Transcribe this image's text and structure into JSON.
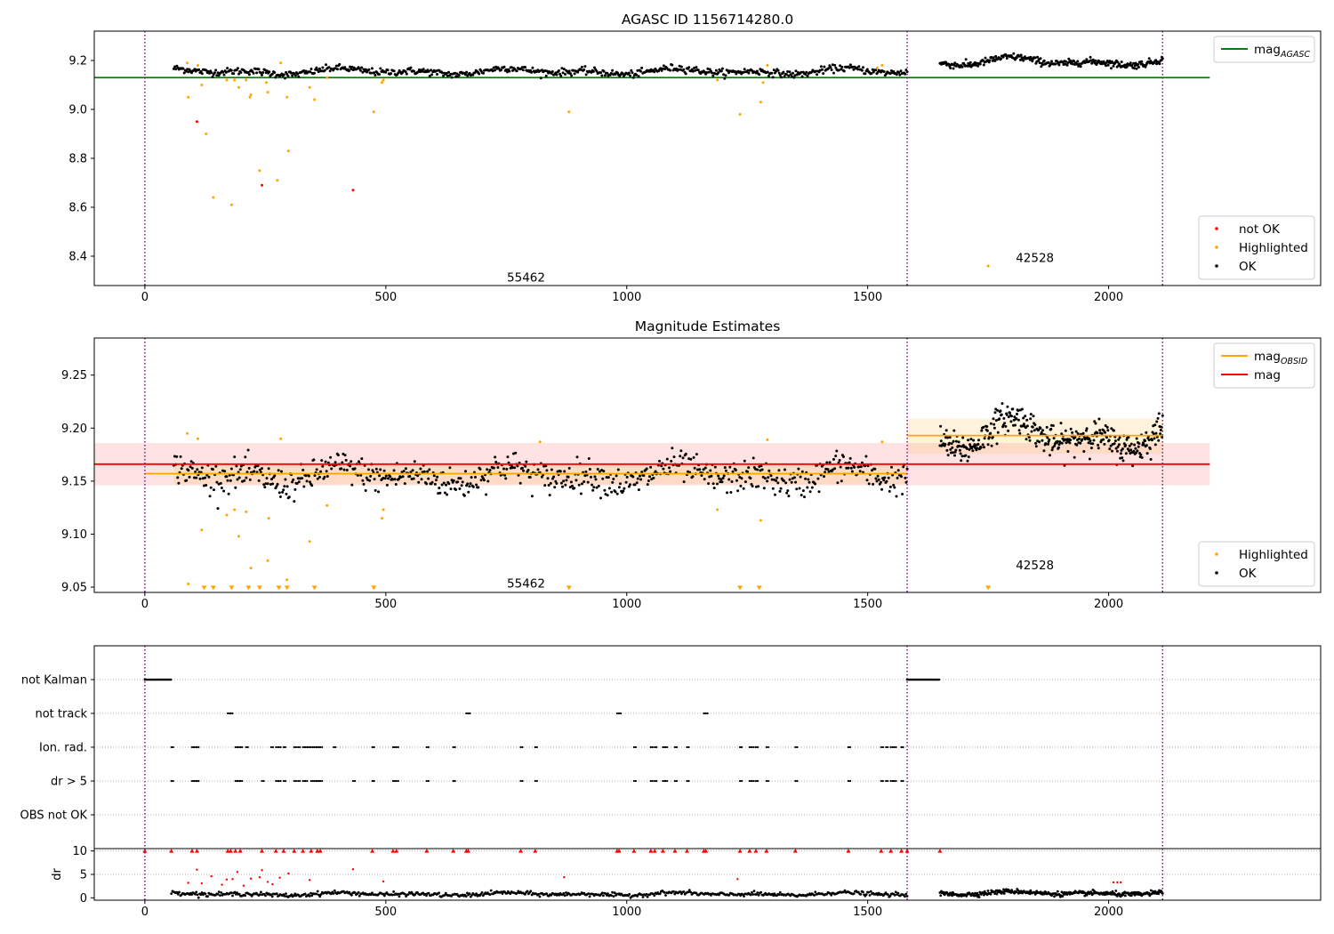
{
  "chart_data": [
    {
      "type": "scatter",
      "title": "AGASC ID 1156714280.0",
      "xlim": [
        -105,
        2440
      ],
      "ylim": [
        8.28,
        9.32
      ],
      "xticks": [
        0,
        500,
        1000,
        1500,
        2000
      ],
      "yticks": [
        8.4,
        8.6,
        8.8,
        9.0,
        9.2
      ],
      "ytick_labels": [
        "8.4",
        "8.6",
        "8.8",
        "9.0",
        "9.2"
      ],
      "vlines": [
        0,
        1582,
        2112
      ],
      "hlines": [
        {
          "name": "mag_AGASC",
          "y": 9.13,
          "x_range": [
            -105,
            2210
          ],
          "color": "#008000"
        }
      ],
      "annotations": [
        {
          "text": "55462",
          "x": 791,
          "y": 8.315
        },
        {
          "text": "42528",
          "x": 1847,
          "y": 8.395
        }
      ],
      "legends": [
        {
          "position": "top-right",
          "entries": [
            {
              "label": "mag",
              "subscript": "AGASC",
              "kind": "line",
              "color": "#008000"
            }
          ]
        },
        {
          "position": "bottom-right",
          "entries": [
            {
              "label": "not OK",
              "kind": "dot",
              "color": "#ff0000"
            },
            {
              "label": "Highlighted",
              "kind": "dot",
              "color": "#ffa500"
            },
            {
              "label": "OK",
              "kind": "dot",
              "color": "#000000"
            }
          ]
        }
      ],
      "series": [
        {
          "name": "OK",
          "color": "#000000",
          "segments": [
            {
              "x0": 60,
              "x1": 1582,
              "base": 9.155,
              "amp": 0.015,
              "noise": 0.012,
              "n": 700
            },
            {
              "x0": 1650,
              "x1": 2112,
              "base": 9.195,
              "amp": 0.02,
              "noise": 0.012,
              "n": 300
            }
          ]
        },
        {
          "name": "Highlighted",
          "color": "#ffa500",
          "points": [
            [
              88,
              9.19
            ],
            [
              90,
              9.05
            ],
            [
              110,
              9.18
            ],
            [
              118,
              9.1
            ],
            [
              127,
              8.9
            ],
            [
              142,
              8.64
            ],
            [
              170,
              9.12
            ],
            [
              180,
              8.61
            ],
            [
              186,
              9.12
            ],
            [
              195,
              9.09
            ],
            [
              210,
              9.12
            ],
            [
              218,
              9.05
            ],
            [
              220,
              9.06
            ],
            [
              238,
              8.75
            ],
            [
              252,
              9.11
            ],
            [
              255,
              9.07
            ],
            [
              275,
              8.71
            ],
            [
              282,
              9.19
            ],
            [
              295,
              9.05
            ],
            [
              298,
              8.83
            ],
            [
              342,
              9.09
            ],
            [
              352,
              9.04
            ],
            [
              378,
              9.13
            ],
            [
              475,
              8.99
            ],
            [
              492,
              9.11
            ],
            [
              495,
              9.12
            ],
            [
              880,
              8.99
            ],
            [
              1188,
              9.12
            ],
            [
              1235,
              8.98
            ],
            [
              1278,
              9.03
            ],
            [
              1283,
              9.11
            ],
            [
              1292,
              9.18
            ],
            [
              1520,
              9.17
            ],
            [
              1530,
              9.18
            ],
            [
              1750,
              8.36
            ]
          ]
        },
        {
          "name": "not OK",
          "color": "#ff0000",
          "points": [
            [
              108,
              8.95
            ],
            [
              243,
              8.69
            ],
            [
              432,
              8.67
            ]
          ]
        }
      ]
    },
    {
      "type": "scatter",
      "title": "Magnitude Estimates",
      "xlim": [
        -105,
        2440
      ],
      "ylim": [
        9.045,
        9.285
      ],
      "xticks": [
        0,
        500,
        1000,
        1500,
        2000
      ],
      "yticks": [
        9.05,
        9.1,
        9.15,
        9.2,
        9.25
      ],
      "ytick_labels": [
        "9.05",
        "9.10",
        "9.15",
        "9.20",
        "9.25"
      ],
      "vlines": [
        0,
        1582,
        2112
      ],
      "bands": [
        {
          "x0": -105,
          "x1": 2210,
          "y0": 9.146,
          "y1": 9.186,
          "color": "#ff0000",
          "opacity": 0.11
        },
        {
          "x0": 60,
          "x1": 1582,
          "y0": 9.147,
          "y1": 9.166,
          "color": "#ffa500",
          "opacity": 0.13
        },
        {
          "x0": 1582,
          "x1": 2112,
          "y0": 9.176,
          "y1": 9.209,
          "color": "#ffa500",
          "opacity": 0.13
        }
      ],
      "hlines": [
        {
          "name": "mag",
          "y": 9.166,
          "x_range": [
            -105,
            2210
          ],
          "color": "#ff0000"
        },
        {
          "name": "mag_OBSID",
          "y": 9.157,
          "x_range": [
            0,
            1582
          ],
          "color": "#ffa500"
        },
        {
          "name": "mag_OBSID",
          "y": 9.193,
          "x_range": [
            1582,
            2112
          ],
          "color": "#ffa500"
        }
      ],
      "annotations": [
        {
          "text": "55462",
          "x": 791,
          "y": 9.054
        },
        {
          "text": "42528",
          "x": 1847,
          "y": 9.071
        }
      ],
      "legends": [
        {
          "position": "top-right",
          "entries": [
            {
              "label": "mag",
              "subscript": "OBSID",
              "kind": "line",
              "color": "#ffa500"
            },
            {
              "label": "mag",
              "kind": "line",
              "color": "#ff0000"
            }
          ]
        },
        {
          "position": "bottom-right",
          "entries": [
            {
              "label": "Highlighted",
              "kind": "dot",
              "color": "#ffa500"
            },
            {
              "label": "OK",
              "kind": "dot",
              "color": "#000000"
            }
          ]
        }
      ],
      "series": [
        {
          "name": "OK",
          "color": "#000000",
          "segments": [
            {
              "x0": 60,
              "x1": 1582,
              "base": 9.155,
              "amp": 0.01,
              "noise": 0.012,
              "n": 750
            },
            {
              "x0": 1650,
              "x1": 2112,
              "base": 9.193,
              "amp": 0.018,
              "noise": 0.012,
              "n": 380
            }
          ]
        },
        {
          "name": "Highlighted",
          "color": "#ffa500",
          "points": [
            [
              88,
              9.195
            ],
            [
              90,
              9.053
            ],
            [
              110,
              9.19
            ],
            [
              118,
              9.104
            ],
            [
              170,
              9.118
            ],
            [
              186,
              9.123
            ],
            [
              195,
              9.098
            ],
            [
              210,
              9.121
            ],
            [
              220,
              9.068
            ],
            [
              255,
              9.075
            ],
            [
              257,
              9.115
            ],
            [
              282,
              9.19
            ],
            [
              295,
              9.057
            ],
            [
              342,
              9.093
            ],
            [
              378,
              9.127
            ],
            [
              492,
              9.115
            ],
            [
              495,
              9.123
            ],
            [
              820,
              9.187
            ],
            [
              1188,
              9.123
            ],
            [
              1278,
              9.113
            ],
            [
              1292,
              9.189
            ],
            [
              1530,
              9.187
            ]
          ]
        },
        {
          "name": "Highlighted (off scale)",
          "color": "#ffa500",
          "marker": "triangle-down",
          "points": [
            [
              123,
              9.048
            ],
            [
              142,
              9.048
            ],
            [
              180,
              9.048
            ],
            [
              215,
              9.048
            ],
            [
              238,
              9.048
            ],
            [
              278,
              9.048
            ],
            [
              295,
              9.048
            ],
            [
              352,
              9.048
            ],
            [
              475,
              9.048
            ],
            [
              880,
              9.048
            ],
            [
              1235,
              9.048
            ],
            [
              1275,
              9.048
            ],
            [
              1750,
              9.048
            ]
          ]
        }
      ]
    },
    {
      "type": "scatter",
      "title": "",
      "xlim": [
        -105,
        2440
      ],
      "categories": [
        "not Kalman",
        "not track",
        "Ion. rad.",
        "dr > 5",
        "OBS not OK"
      ],
      "vlines": [
        0,
        1582,
        2112
      ],
      "flag_ranges": {
        "not Kalman": [
          [
            0,
            55
          ],
          [
            1582,
            1650
          ]
        ]
      },
      "flag_points": {
        "not track": [
          172,
          178,
          667,
          671,
          980,
          984,
          1160,
          1164
        ],
        "Ion. rad.": [
          55,
          98,
          103,
          108,
          188,
          193,
          198,
          210,
          262,
          272,
          278,
          288,
          310,
          318,
          328,
          333,
          338,
          345,
          352,
          358,
          364,
          392,
          472,
          515,
          522,
          585,
          640,
          780,
          810,
          1015,
          1050,
          1058,
          1075,
          1080,
          1100,
          1125,
          1235,
          1255,
          1260,
          1268,
          1290,
          1350,
          1460,
          1528,
          1538,
          1548,
          1555,
          1570
        ],
        "dr > 5": [
          55,
          98,
          103,
          108,
          188,
          193,
          198,
          243,
          272,
          278,
          288,
          310,
          318,
          328,
          333,
          345,
          352,
          358,
          364,
          432,
          472,
          515,
          522,
          585,
          640,
          780,
          810,
          1015,
          1050,
          1058,
          1075,
          1080,
          1100,
          1125,
          1235,
          1255,
          1260,
          1268,
          1290,
          1350,
          1460,
          1528,
          1538,
          1548,
          1555,
          1570
        ],
        "OBS not OK": []
      }
    },
    {
      "type": "scatter",
      "title": "",
      "ylabel": "dr",
      "xlim": [
        -105,
        2440
      ],
      "ylim": [
        -0.5,
        10.5
      ],
      "xticks": [
        0,
        500,
        1000,
        1500,
        2000
      ],
      "yticks": [
        0,
        5,
        10
      ],
      "ytick_labels": [
        "0",
        "5",
        "10"
      ],
      "vlines": [
        0,
        1582,
        2112
      ],
      "series": [
        {
          "name": "dr",
          "color": "#000000",
          "segments": [
            {
              "x0": 55,
              "x1": 1582,
              "base": 0.8,
              "amp": 0.35,
              "noise": 0.35,
              "n": 650
            },
            {
              "x0": 1650,
              "x1": 2112,
              "base": 1.0,
              "amp": 0.4,
              "noise": 0.4,
              "n": 330
            }
          ]
        },
        {
          "name": "dr > 5 (outliers)",
          "color": "#ff0000",
          "points": [
            [
              90,
              3.2
            ],
            [
              108,
              6.0
            ],
            [
              118,
              3.1
            ],
            [
              138,
              4.6
            ],
            [
              160,
              2.8
            ],
            [
              170,
              3.9
            ],
            [
              182,
              4.0
            ],
            [
              192,
              5.5
            ],
            [
              205,
              2.6
            ],
            [
              220,
              4.1
            ],
            [
              238,
              4.4
            ],
            [
              243,
              5.9
            ],
            [
              255,
              3.4
            ],
            [
              265,
              2.9
            ],
            [
              280,
              4.3
            ],
            [
              298,
              5.2
            ],
            [
              342,
              3.8
            ],
            [
              432,
              6.1
            ],
            [
              495,
              3.5
            ],
            [
              870,
              4.4
            ],
            [
              1230,
              4.0
            ],
            [
              2010,
              3.3
            ],
            [
              2018,
              3.3
            ],
            [
              2025,
              3.3
            ]
          ]
        },
        {
          "name": "dr clipped",
          "color": "#ff0000",
          "marker": "triangle-up",
          "points": [
            [
              0,
              10
            ],
            [
              55,
              10
            ],
            [
              98,
              10
            ],
            [
              108,
              10
            ],
            [
              172,
              10
            ],
            [
              178,
              10
            ],
            [
              188,
              10
            ],
            [
              198,
              10
            ],
            [
              243,
              10
            ],
            [
              272,
              10
            ],
            [
              288,
              10
            ],
            [
              310,
              10
            ],
            [
              328,
              10
            ],
            [
              345,
              10
            ],
            [
              358,
              10
            ],
            [
              364,
              10
            ],
            [
              472,
              10
            ],
            [
              515,
              10
            ],
            [
              522,
              10
            ],
            [
              585,
              10
            ],
            [
              640,
              10
            ],
            [
              667,
              10
            ],
            [
              671,
              10
            ],
            [
              780,
              10
            ],
            [
              810,
              10
            ],
            [
              980,
              10
            ],
            [
              984,
              10
            ],
            [
              1015,
              10
            ],
            [
              1050,
              10
            ],
            [
              1058,
              10
            ],
            [
              1075,
              10
            ],
            [
              1100,
              10
            ],
            [
              1125,
              10
            ],
            [
              1160,
              10
            ],
            [
              1164,
              10
            ],
            [
              1235,
              10
            ],
            [
              1255,
              10
            ],
            [
              1268,
              10
            ],
            [
              1290,
              10
            ],
            [
              1350,
              10
            ],
            [
              1460,
              10
            ],
            [
              1528,
              10
            ],
            [
              1548,
              10
            ],
            [
              1570,
              10
            ],
            [
              1582,
              10
            ],
            [
              1650,
              10
            ]
          ]
        }
      ]
    }
  ]
}
